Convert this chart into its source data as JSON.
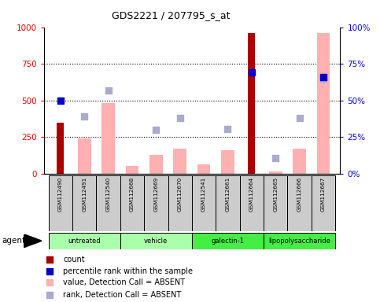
{
  "title": "GDS2221 / 207795_s_at",
  "samples": [
    "GSM112490",
    "GSM112491",
    "GSM112540",
    "GSM112668",
    "GSM112669",
    "GSM112670",
    "GSM112541",
    "GSM112661",
    "GSM112664",
    "GSM112665",
    "GSM112666",
    "GSM112667"
  ],
  "group_boundaries": [
    {
      "start": 0,
      "end": 2,
      "label": "untreated",
      "color": "#aaffaa"
    },
    {
      "start": 3,
      "end": 5,
      "label": "vehicle",
      "color": "#aaffaa"
    },
    {
      "start": 6,
      "end": 8,
      "label": "galectin-1",
      "color": "#44ee44"
    },
    {
      "start": 9,
      "end": 11,
      "label": "lipopolysaccharide",
      "color": "#44ee44"
    }
  ],
  "count_bars": [
    350,
    null,
    null,
    null,
    null,
    null,
    null,
    null,
    960,
    null,
    null,
    null
  ],
  "count_color": "#aa0000",
  "value_absent_bars": [
    null,
    240,
    480,
    55,
    130,
    170,
    65,
    160,
    null,
    15,
    170,
    960
  ],
  "value_absent_color": "#ffb0b0",
  "rank_absent_squares": [
    null,
    390,
    570,
    null,
    300,
    380,
    null,
    305,
    null,
    105,
    380,
    650
  ],
  "rank_absent_color": "#aaaacc",
  "percentile_rank_squares": [
    500,
    null,
    null,
    null,
    null,
    null,
    null,
    null,
    690,
    null,
    null,
    660
  ],
  "percentile_rank_color": "#0000cc",
  "ylim": [
    0,
    1000
  ],
  "yticks_left": [
    0,
    250,
    500,
    750,
    1000
  ],
  "yticks_right": [
    0,
    25,
    50,
    75,
    100
  ],
  "legend_items": [
    {
      "color": "#aa0000",
      "label": "count",
      "marker": "s"
    },
    {
      "color": "#0000cc",
      "label": "percentile rank within the sample",
      "marker": "s"
    },
    {
      "color": "#ffb0b0",
      "label": "value, Detection Call = ABSENT",
      "marker": "s"
    },
    {
      "color": "#aaaacc",
      "label": "rank, Detection Call = ABSENT",
      "marker": "s"
    }
  ]
}
